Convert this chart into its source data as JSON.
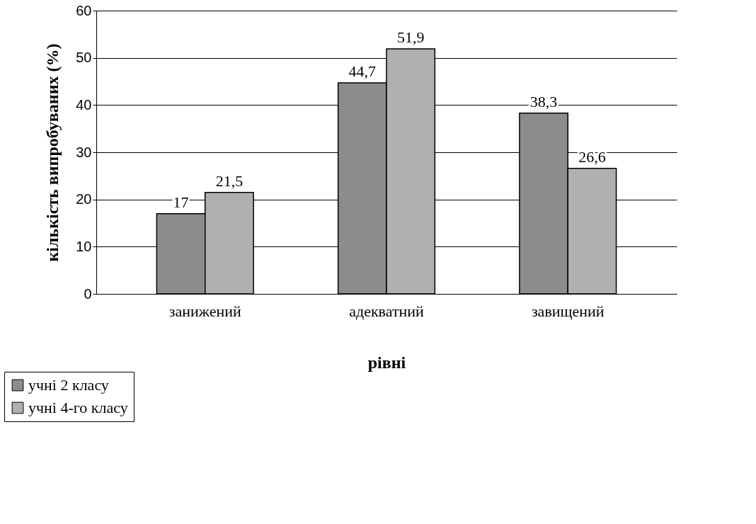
{
  "chart_data": {
    "type": "bar",
    "xlabel": "рівні",
    "ylabel": "кількість випробуваних (%)",
    "categories": [
      "занижений",
      "адекватний",
      "завищений"
    ],
    "series": [
      {
        "name": "учні 2 класу",
        "color": "#8c8c8c",
        "values": [
          17,
          44.7,
          38.3
        ],
        "value_labels": [
          "17",
          "44,7",
          "38,3"
        ]
      },
      {
        "name": "учні 4-го класу",
        "color": "#b0b0b0",
        "values": [
          21.5,
          51.9,
          26.6
        ],
        "value_labels": [
          "21,5",
          "51,9",
          "26,6"
        ]
      }
    ],
    "ylim": [
      0,
      60
    ],
    "yticks": [
      0,
      10,
      20,
      30,
      40,
      50,
      60
    ],
    "grid": "y",
    "legend": "bottom left"
  }
}
